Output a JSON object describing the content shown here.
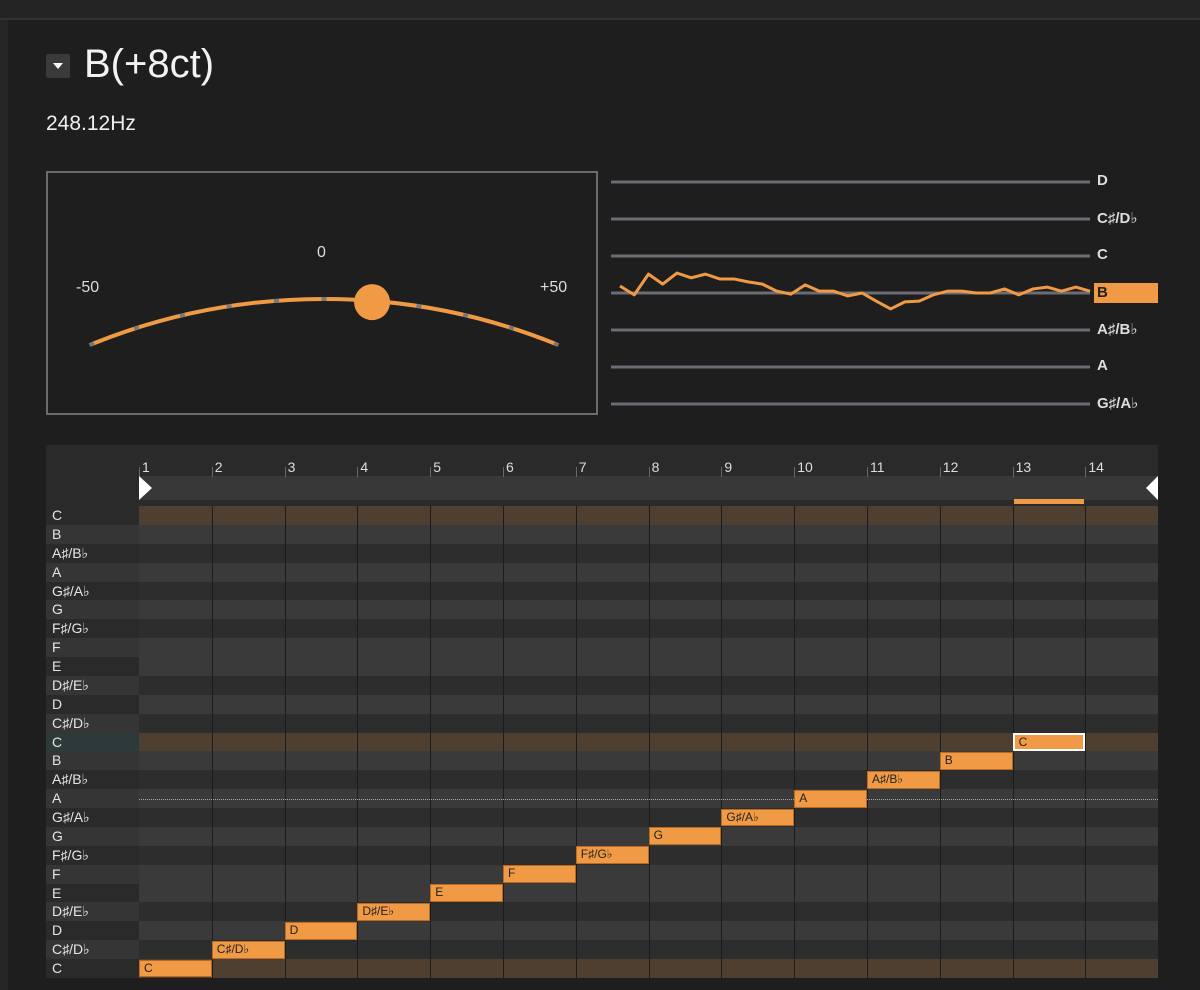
{
  "header": {
    "note_title": "B(+8ct)",
    "frequency": "248.12Hz"
  },
  "meter": {
    "cents": 8,
    "min_label": "-50",
    "center_label": "0",
    "max_label": "+50",
    "accent": "#f09a45"
  },
  "staff": {
    "labels": [
      "D",
      "C♯/D♭",
      "C",
      "B",
      "A♯/B♭",
      "A",
      "G♯/A♭"
    ],
    "active_index": 3,
    "trace_cents": [
      19,
      -5,
      51,
      24,
      54,
      41,
      51,
      38,
      38,
      30,
      24,
      5,
      -3,
      22,
      5,
      5,
      -8,
      0,
      -22,
      -43,
      -24,
      -22,
      -5,
      5,
      5,
      0,
      0,
      11,
      -5,
      11,
      16,
      5,
      16,
      5
    ]
  },
  "roll": {
    "columns": [
      "1",
      "2",
      "3",
      "4",
      "5",
      "6",
      "7",
      "8",
      "9",
      "10",
      "11",
      "12",
      "13",
      "14"
    ],
    "rows": [
      "C",
      "B",
      "A♯/B♭",
      "A",
      "G♯/A♭",
      "G",
      "F♯/G♭",
      "F",
      "E",
      "D♯/E♭",
      "D",
      "C♯/D♭",
      "C",
      "B",
      "A♯/B♭",
      "A",
      "G♯/A♭",
      "G",
      "F♯/G♭",
      "F",
      "E",
      "D♯/E♭",
      "D",
      "C♯/D♭",
      "C"
    ],
    "notes": [
      {
        "column": 1,
        "row": 24,
        "label": "C"
      },
      {
        "column": 2,
        "row": 23,
        "label": "C♯/D♭"
      },
      {
        "column": 3,
        "row": 22,
        "label": "D"
      },
      {
        "column": 4,
        "row": 21,
        "label": "D♯/E♭"
      },
      {
        "column": 5,
        "row": 20,
        "label": "E"
      },
      {
        "column": 6,
        "row": 19,
        "label": "F"
      },
      {
        "column": 7,
        "row": 18,
        "label": "F♯/G♭"
      },
      {
        "column": 8,
        "row": 17,
        "label": "G"
      },
      {
        "column": 9,
        "row": 16,
        "label": "G♯/A♭"
      },
      {
        "column": 10,
        "row": 15,
        "label": "A"
      },
      {
        "column": 11,
        "row": 14,
        "label": "A♯/B♭"
      },
      {
        "column": 12,
        "row": 13,
        "label": "B"
      },
      {
        "column": 13,
        "row": 12,
        "label": "C",
        "selected": true
      }
    ],
    "current_column": 13,
    "reference_row": 15,
    "highlight_label_row": 12
  }
}
